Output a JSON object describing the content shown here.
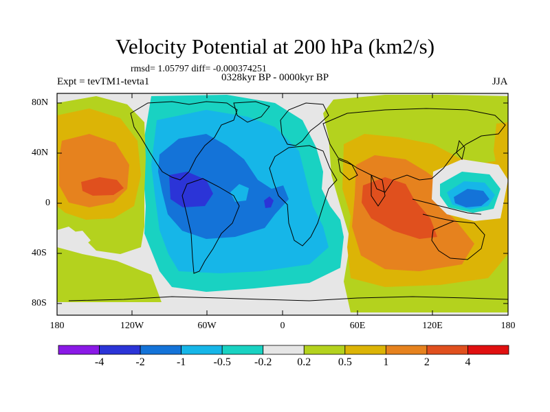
{
  "title": "Velocity Potential at 200 hPa (km2/s)",
  "stats": "rmsd= 1.05797 diff= -0.000374251",
  "experiment": "Expt = tevTM1-tevta1",
  "period": "0328kyr BP - 0000kyr BP",
  "season": "JJA",
  "axes": {
    "lat_ticks": [
      "80N",
      "40N",
      "0",
      "40S",
      "80S"
    ],
    "lon_ticks": [
      "180",
      "120W",
      "60W",
      "0",
      "60E",
      "120E",
      "180"
    ]
  },
  "colorbar": {
    "labels": [
      "-4",
      "-2",
      "-1",
      "-0.5",
      "-0.2",
      "0.2",
      "0.5",
      "1",
      "2",
      "4"
    ],
    "colors": [
      "#8a19e6",
      "#2b34d7",
      "#1473d8",
      "#16b6e8",
      "#19d2c2",
      "#e6e6e6",
      "#b4d21e",
      "#dcb406",
      "#e6821e",
      "#e0501e",
      "#e01010"
    ]
  },
  "colors": {
    "background_field": "#e6e6e6",
    "coastline": "#000000"
  }
}
